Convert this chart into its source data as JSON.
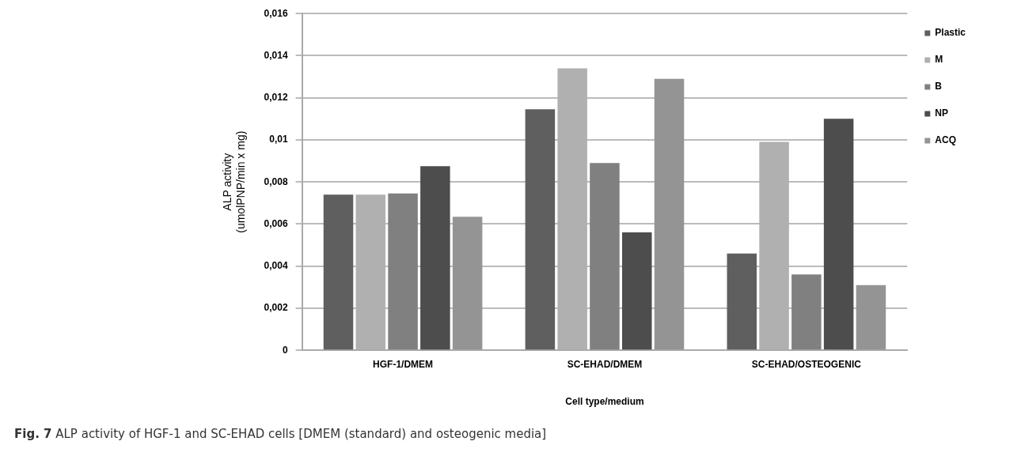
{
  "chart_data": {
    "type": "bar",
    "xlabel": "Cell type/medium",
    "ylabel": "ALP activity\n(umolPNP/min x mg)",
    "categories": [
      "HGF-1/DMEM",
      "SC-EHAD/DMEM",
      "SC-EHAD/OSTEOGENIC"
    ],
    "series": [
      {
        "name": "Plastic",
        "color": "#5f5f5f",
        "values": [
          0.0074,
          0.01145,
          0.0046
        ]
      },
      {
        "name": "M",
        "color": "#b0b0b0",
        "values": [
          0.0074,
          0.0134,
          0.0099
        ]
      },
      {
        "name": "B",
        "color": "#808080",
        "values": [
          0.00745,
          0.0089,
          0.0036
        ]
      },
      {
        "name": "NP",
        "color": "#4d4d4d",
        "values": [
          0.00875,
          0.0056,
          0.011
        ]
      },
      {
        "name": "ACQ",
        "color": "#949494",
        "values": [
          0.00635,
          0.0129,
          0.0031
        ]
      }
    ],
    "ylim": [
      0,
      0.016
    ],
    "yticks": [
      {
        "value": 0,
        "label": "0"
      },
      {
        "value": 0.002,
        "label": "0,002"
      },
      {
        "value": 0.004,
        "label": "0,004"
      },
      {
        "value": 0.006,
        "label": "0,006"
      },
      {
        "value": 0.008,
        "label": "0,008"
      },
      {
        "value": 0.01,
        "label": "0,01"
      },
      {
        "value": 0.012,
        "label": "0,012"
      },
      {
        "value": 0.014,
        "label": "0,014"
      },
      {
        "value": 0.016,
        "label": "0,016"
      }
    ],
    "grid": "y",
    "legend": "right",
    "annotations": [
      "Fig. 7 ALP activity of HGF-1 and SC-EHAD cells [DMEM (standard) and osteogenic media]"
    ]
  }
}
